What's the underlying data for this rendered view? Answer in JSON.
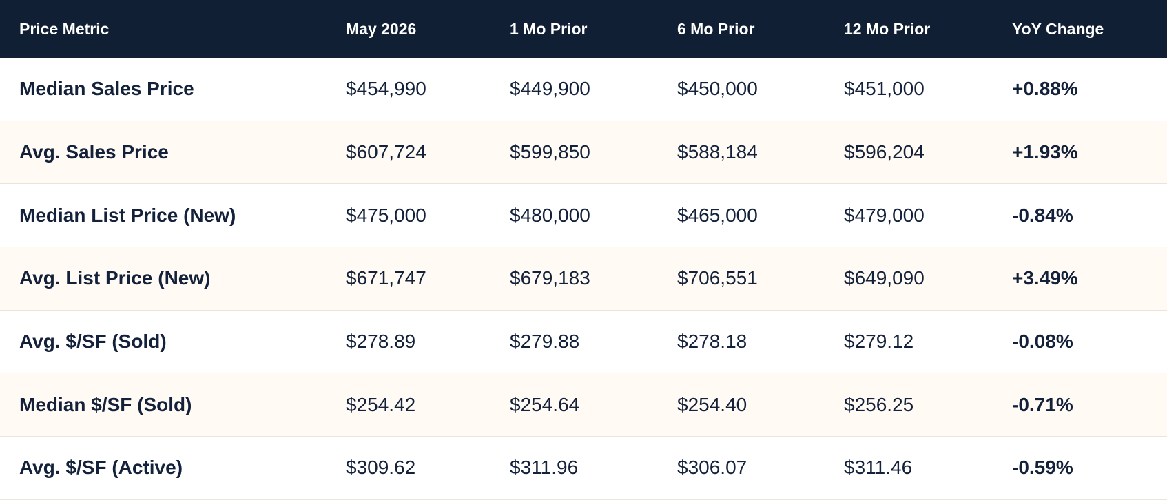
{
  "table": {
    "header": [
      "Price Metric",
      "May 2026",
      "1 Mo Prior",
      "6 Mo Prior",
      "12 Mo Prior",
      "YoY Change"
    ],
    "rows": [
      [
        "Median Sales Price",
        "$454,990",
        "$449,900",
        "$450,000",
        "$451,000",
        "+0.88%"
      ],
      [
        "Avg. Sales Price",
        "$607,724",
        "$599,850",
        "$588,184",
        "$596,204",
        "+1.93%"
      ],
      [
        "Median List Price (New)",
        "$475,000",
        "$480,000",
        "$465,000",
        "$479,000",
        "-0.84%"
      ],
      [
        "Avg. List Price (New)",
        "$671,747",
        "$679,183",
        "$706,551",
        "$649,090",
        "+3.49%"
      ],
      [
        "Avg. $/SF (Sold)",
        "$278.89",
        "$279.88",
        "$278.18",
        "$279.12",
        "-0.08%"
      ],
      [
        "Median $/SF (Sold)",
        "$254.42",
        "$254.64",
        "$254.40",
        "$256.25",
        "-0.71%"
      ],
      [
        "Avg. $/SF (Active)",
        "$309.62",
        "$311.96",
        "$306.07",
        "$311.46",
        "-0.59%"
      ]
    ]
  }
}
